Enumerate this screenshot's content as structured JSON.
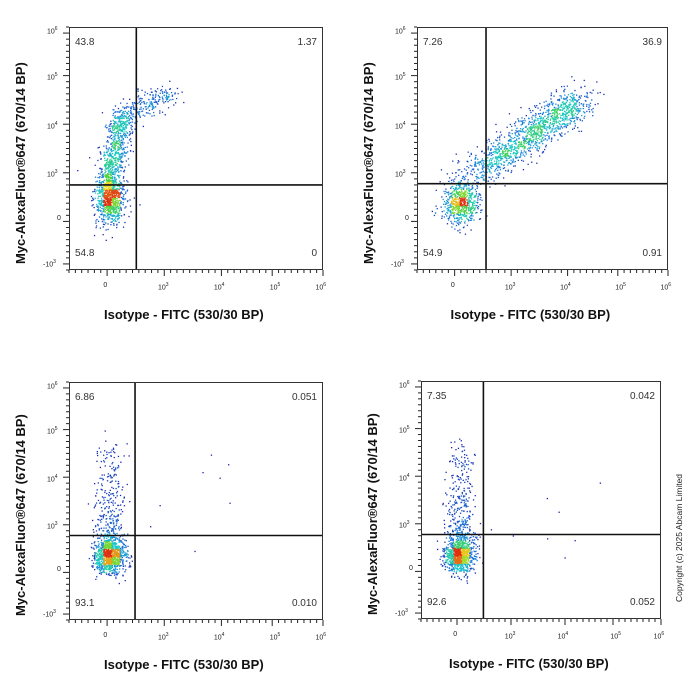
{
  "chart_data": [
    {
      "type": "scatter",
      "xlabel": "Isotype - FITC (530/30 BP)",
      "ylabel": "Myc-AlexaFluor®647 (670/14 BP)",
      "quadrants": {
        "upper_left": "43.8",
        "upper_right": "1.37",
        "lower_left": "54.8",
        "lower_right": "0"
      }
    },
    {
      "type": "scatter",
      "xlabel": "Isotype - FITC (530/30 BP)",
      "ylabel": "Myc-AlexaFluor®647 (670/14 BP)",
      "quadrants": {
        "upper_left": "7.26",
        "upper_right": "36.9",
        "lower_left": "54.9",
        "lower_right": "0.91"
      }
    },
    {
      "type": "scatter",
      "xlabel": "Isotype - FITC (530/30 BP)",
      "ylabel": "Myc-AlexaFluor®647 (670/14 BP)",
      "quadrants": {
        "upper_left": "6.86",
        "upper_right": "0.051",
        "lower_left": "93.1",
        "lower_right": "0.010"
      }
    },
    {
      "type": "scatter",
      "xlabel": "Isotype - FITC (530/30 BP)",
      "ylabel": "Myc-AlexaFluor®647 (670/14 BP)",
      "quadrants": {
        "upper_left": "7.35",
        "upper_right": "0.042",
        "lower_left": "92.6",
        "lower_right": "0.052"
      }
    }
  ],
  "axes": {
    "x_ticks": [
      {
        "base": "0",
        "exp": ""
      },
      {
        "base": "10",
        "exp": "3"
      },
      {
        "base": "10",
        "exp": "4"
      },
      {
        "base": "10",
        "exp": "5"
      },
      {
        "base": "10",
        "exp": "6"
      }
    ],
    "y_ticks": [
      {
        "base": "10",
        "exp": "6"
      },
      {
        "base": "10",
        "exp": "5"
      },
      {
        "base": "10",
        "exp": "4"
      },
      {
        "base": "10",
        "exp": "3"
      },
      {
        "base": "0",
        "exp": ""
      },
      {
        "base": "-10",
        "exp": "3"
      }
    ],
    "scale": "biexponential",
    "grid": false
  },
  "colors": {
    "low": "#1a1aa8",
    "mid": "#19c8c8",
    "high": "#e8e020",
    "peak": "#e03010",
    "gate": "#111111"
  },
  "copyright": "Copyright (c) 2025 Abcam Limited"
}
